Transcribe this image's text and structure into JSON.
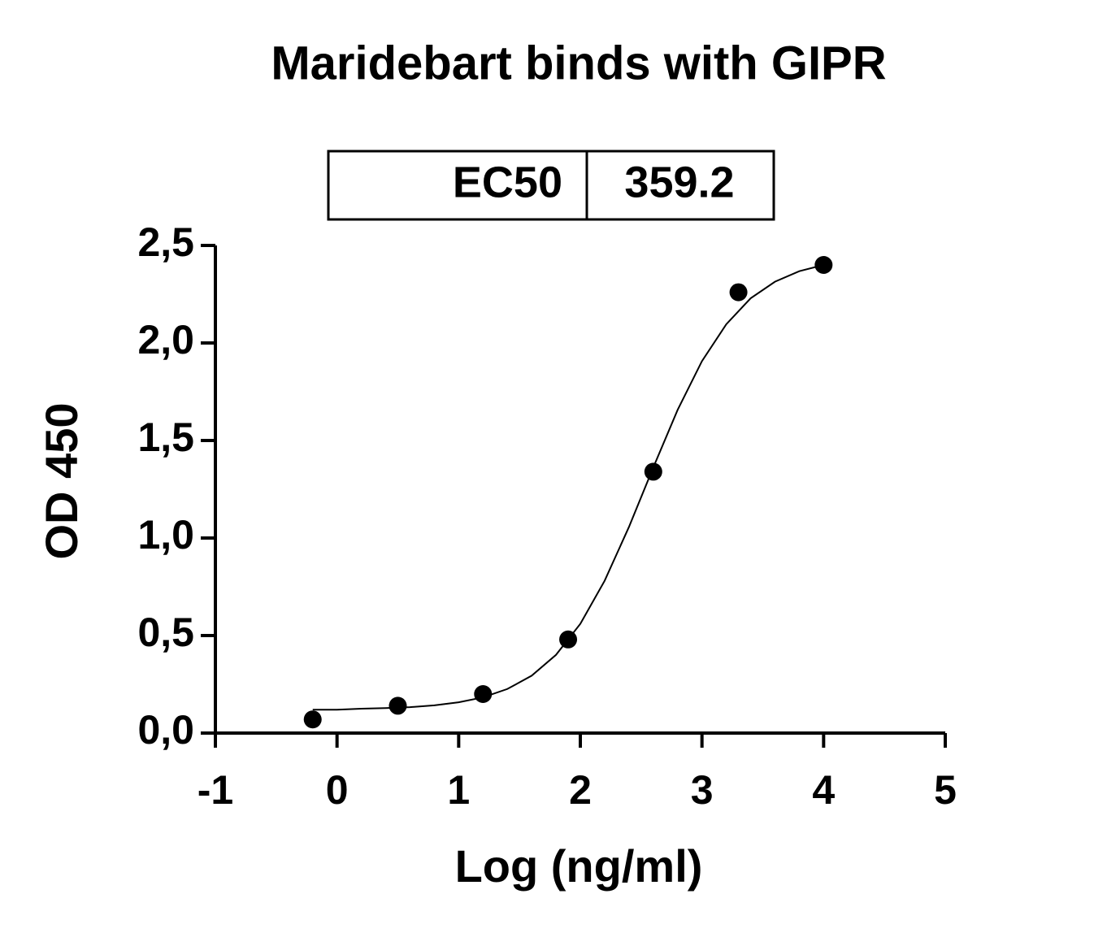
{
  "chart_data": {
    "type": "scatter",
    "title": "Maridebart binds with GIPR",
    "xlabel": "Log (ng/ml)",
    "ylabel": "OD 450",
    "ec50": {
      "label": "EC50",
      "value": "359.2"
    },
    "xlim": [
      -1,
      5
    ],
    "xticks": [
      -1,
      0,
      1,
      2,
      3,
      4,
      5
    ],
    "ylim": [
      0,
      2.5
    ],
    "yticks": [
      {
        "value": 0,
        "label": "0,0"
      },
      {
        "value": 0.5,
        "label": "0,5"
      },
      {
        "value": 1,
        "label": "1,0"
      },
      {
        "value": 1.5,
        "label": "1,5"
      },
      {
        "value": 2,
        "label": "2,0"
      },
      {
        "value": 2.5,
        "label": "2,5"
      }
    ],
    "series": [
      {
        "kind": "points",
        "color": "#000000",
        "x": [
          -0.2,
          0.5,
          1.2,
          1.9,
          2.6,
          3.3,
          4.0
        ],
        "values": [
          0.07,
          0.14,
          0.2,
          0.48,
          1.34,
          2.26,
          2.4
        ]
      },
      {
        "kind": "curve",
        "color": "#000000",
        "x": [
          -0.2,
          0.0,
          0.2,
          0.4,
          0.6,
          0.8,
          1.0,
          1.2,
          1.4,
          1.6,
          1.8,
          2.0,
          2.2,
          2.4,
          2.6,
          2.8,
          3.0,
          3.2,
          3.4,
          3.6,
          3.8,
          4.0
        ],
        "values": [
          0.12,
          0.12,
          0.125,
          0.128,
          0.133,
          0.142,
          0.158,
          0.183,
          0.226,
          0.294,
          0.401,
          0.56,
          0.781,
          1.057,
          1.362,
          1.657,
          1.907,
          2.096,
          2.229,
          2.314,
          2.368,
          2.4
        ]
      }
    ]
  }
}
